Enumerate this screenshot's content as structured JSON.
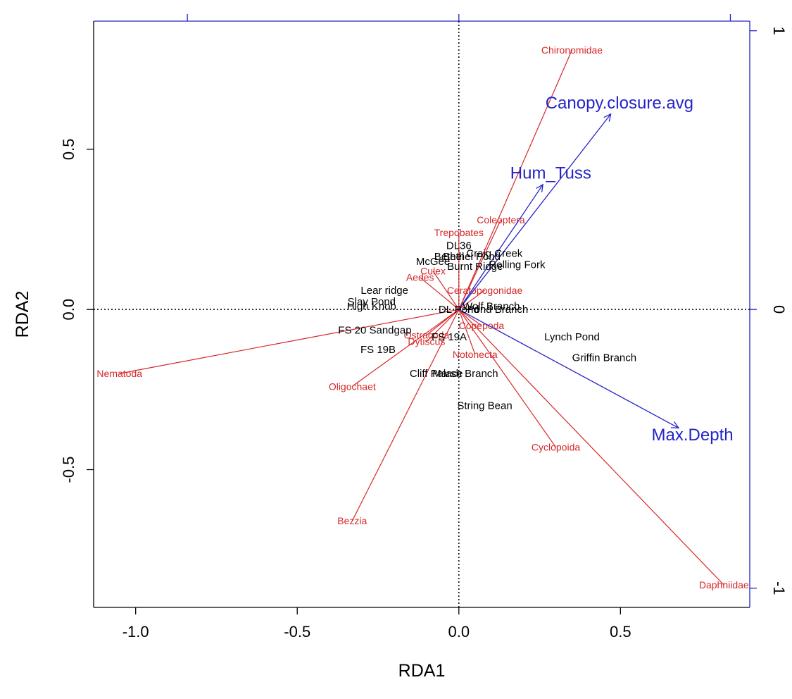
{
  "chart_data": {
    "type": "scatter",
    "title": "",
    "xlabel": "RDA1",
    "ylabel": "RDA2",
    "xlim": [
      -1.13,
      0.9
    ],
    "ylim": [
      -0.93,
      0.9
    ],
    "x_ticks": [
      -1.0,
      -0.5,
      0.0,
      0.5
    ],
    "x_tick_labels": [
      "-1.0",
      "-0.5",
      "0.0",
      "0.5"
    ],
    "y_ticks": [
      -0.5,
      0.0,
      0.5
    ],
    "y_tick_labels": [
      "-0.5",
      "0.0",
      "0.5"
    ],
    "secondary_axes": {
      "top_ticks": [
        -0.84,
        0.0,
        0.84
      ],
      "right_ticks": [
        -0.87,
        0.0,
        0.87
      ],
      "right_tick_labels": [
        "-1",
        "0",
        "1"
      ],
      "color": "#2323c8"
    },
    "reference_lines": {
      "x": 0,
      "y": 0,
      "style": "dotted"
    },
    "species": [
      {
        "name": "Chironomidae",
        "x": 0.35,
        "y": 0.81
      },
      {
        "name": "Coleoptera",
        "x": 0.13,
        "y": 0.28
      },
      {
        "name": "Trepobates",
        "x": 0.0,
        "y": 0.24
      },
      {
        "name": "Aedes",
        "x": -0.12,
        "y": 0.1
      },
      {
        "name": "Culex",
        "x": -0.08,
        "y": 0.12
      },
      {
        "name": "Ceratopogonidae",
        "x": 0.08,
        "y": 0.06
      },
      {
        "name": "Nematoda",
        "x": -1.05,
        "y": -0.2
      },
      {
        "name": "Oligochaet",
        "x": -0.33,
        "y": -0.24
      },
      {
        "name": "Dytiscus",
        "x": -0.1,
        "y": -0.1
      },
      {
        "name": "Ostracoda",
        "x": -0.1,
        "y": -0.08
      },
      {
        "name": "Notonecta",
        "x": 0.05,
        "y": -0.14
      },
      {
        "name": "Copepoda",
        "x": 0.07,
        "y": -0.05
      },
      {
        "name": "Bezzia",
        "x": -0.33,
        "y": -0.66
      },
      {
        "name": "Cyclopoida",
        "x": 0.3,
        "y": -0.43
      },
      {
        "name": "Daphniidae",
        "x": 0.82,
        "y": -0.86
      }
    ],
    "sites": [
      {
        "name": "DL36",
        "x": 0.0,
        "y": 0.2
      },
      {
        "name": "Bethel",
        "x": -0.03,
        "y": 0.165
      },
      {
        "name": "Craig Creek",
        "x": 0.11,
        "y": 0.175
      },
      {
        "name": "Bethel Pond",
        "x": 0.04,
        "y": 0.165
      },
      {
        "name": "McGee",
        "x": -0.08,
        "y": 0.15
      },
      {
        "name": "Burnt Ridge",
        "x": 0.05,
        "y": 0.135
      },
      {
        "name": "Rolling Fork",
        "x": 0.18,
        "y": 0.14
      },
      {
        "name": "Lear ridge",
        "x": -0.23,
        "y": 0.06
      },
      {
        "name": "Slay Pond",
        "x": -0.27,
        "y": 0.025
      },
      {
        "name": "High Knob",
        "x": -0.27,
        "y": 0.01
      },
      {
        "name": "Wolf Branch",
        "x": 0.1,
        "y": 0.01
      },
      {
        "name": "DL Pond",
        "x": 0.0,
        "y": 0.0
      },
      {
        "name": "Pond Branch",
        "x": 0.12,
        "y": 0.0
      },
      {
        "name": "FS 20 Sandgap",
        "x": -0.26,
        "y": -0.065
      },
      {
        "name": "FS 19A",
        "x": -0.03,
        "y": -0.085
      },
      {
        "name": "FS 19B",
        "x": -0.25,
        "y": -0.125
      },
      {
        "name": "Lynch Pond",
        "x": 0.35,
        "y": -0.085
      },
      {
        "name": "Griffin Branch",
        "x": 0.45,
        "y": -0.15
      },
      {
        "name": "Cliff Palace",
        "x": -0.07,
        "y": -0.2
      },
      {
        "name": "Marsh Branch",
        "x": 0.02,
        "y": -0.2
      },
      {
        "name": "String Bean",
        "x": 0.08,
        "y": -0.3
      }
    ],
    "environment": [
      {
        "name": "Canopy.closure.avg",
        "x": 0.47,
        "y": 0.61
      },
      {
        "name": "Hum_Tuss",
        "x": 0.26,
        "y": 0.39
      },
      {
        "name": "Max.Depth",
        "x": 0.68,
        "y": -0.37
      }
    ],
    "colors": {
      "species": "#d62728",
      "environment": "#2323c8",
      "sites": "#000000"
    }
  }
}
